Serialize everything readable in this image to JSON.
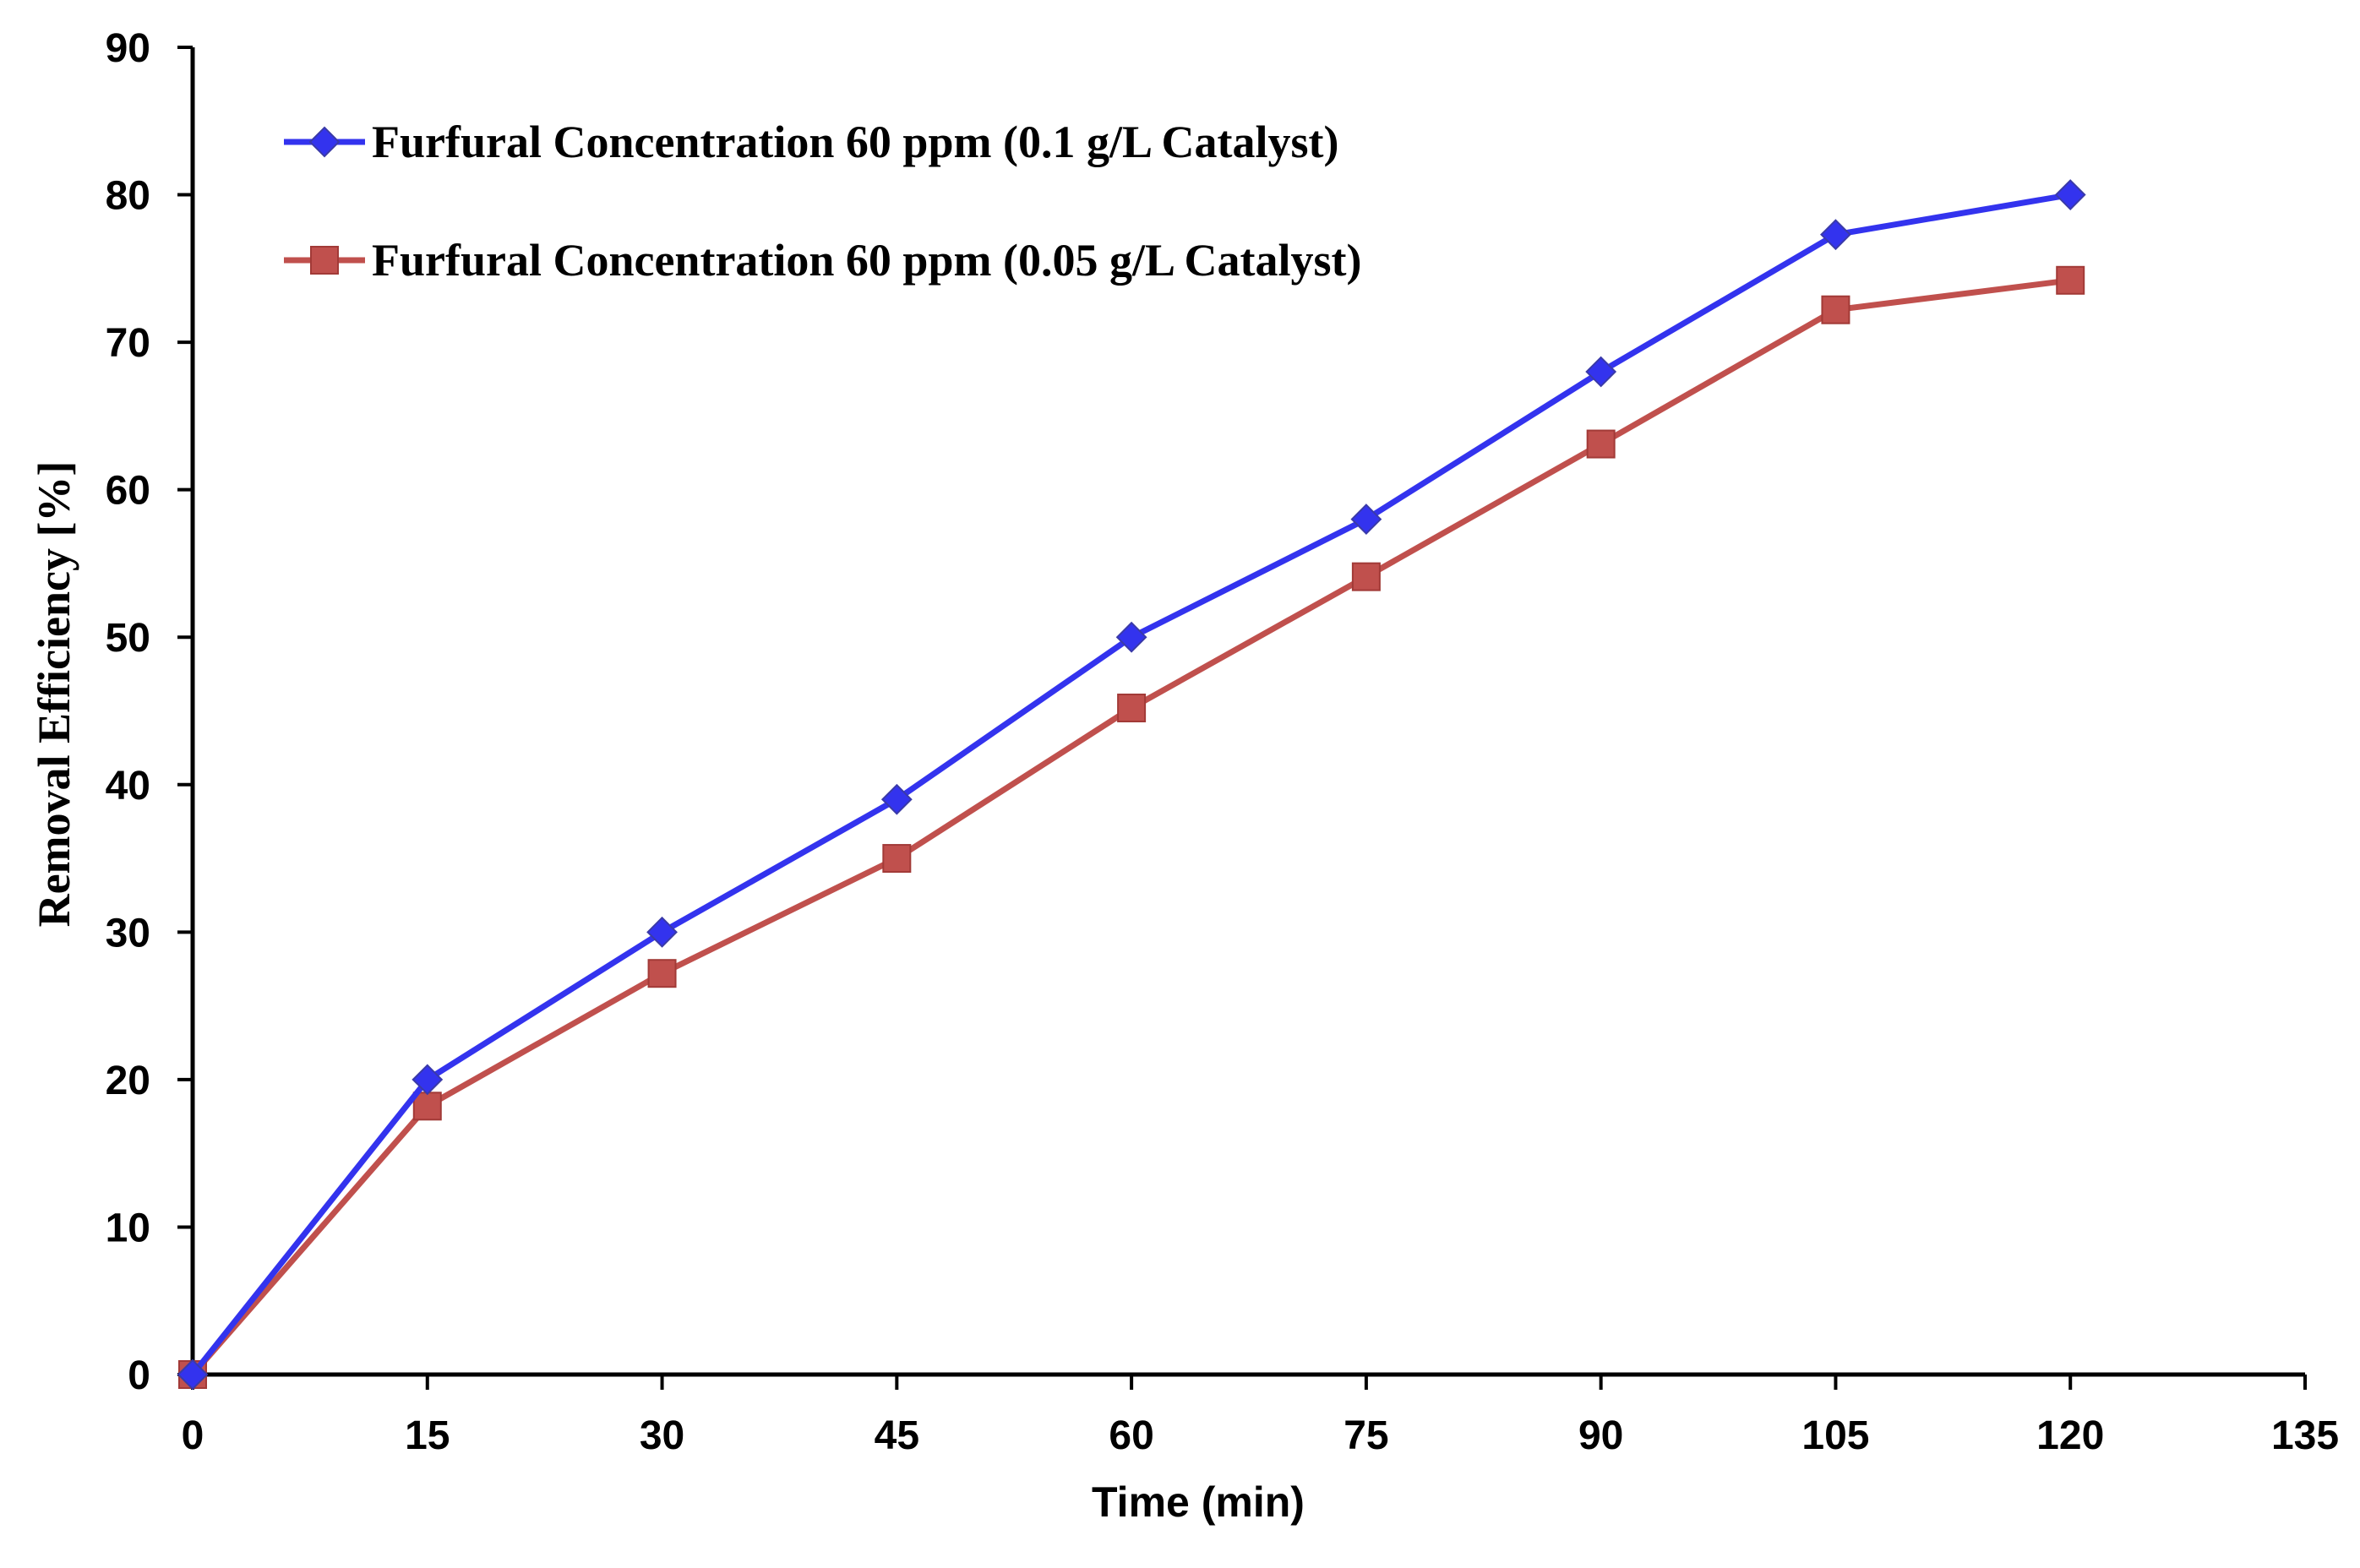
{
  "chart_data": {
    "type": "line",
    "title": "",
    "xlabel": "Time (min)",
    "ylabel": "Removal Efficiency [%]",
    "xlim": [
      0,
      135
    ],
    "ylim": [
      0,
      90
    ],
    "xticks": [
      0,
      15,
      30,
      45,
      60,
      75,
      90,
      105,
      120,
      135
    ],
    "yticks": [
      0,
      10,
      20,
      30,
      40,
      50,
      60,
      70,
      80,
      90
    ],
    "grid": false,
    "legend_position": "top-left",
    "x": [
      0,
      15,
      30,
      45,
      60,
      75,
      90,
      105,
      120
    ],
    "series": [
      {
        "name": "Furfural Concentration 60 ppm (0.1  g/L Catalyst)",
        "marker": "diamond",
        "color": "#3333ee",
        "values": [
          0,
          20,
          30,
          39,
          50,
          58,
          68,
          77.3,
          80
        ]
      },
      {
        "name": "Furfural  Concentration 60 ppm (0.05 g/L Catalyst)",
        "marker": "square",
        "color": "#c0504d",
        "values": [
          0,
          18.2,
          27.2,
          35,
          45.2,
          54.1,
          63.1,
          72.2,
          74.2
        ]
      }
    ]
  }
}
